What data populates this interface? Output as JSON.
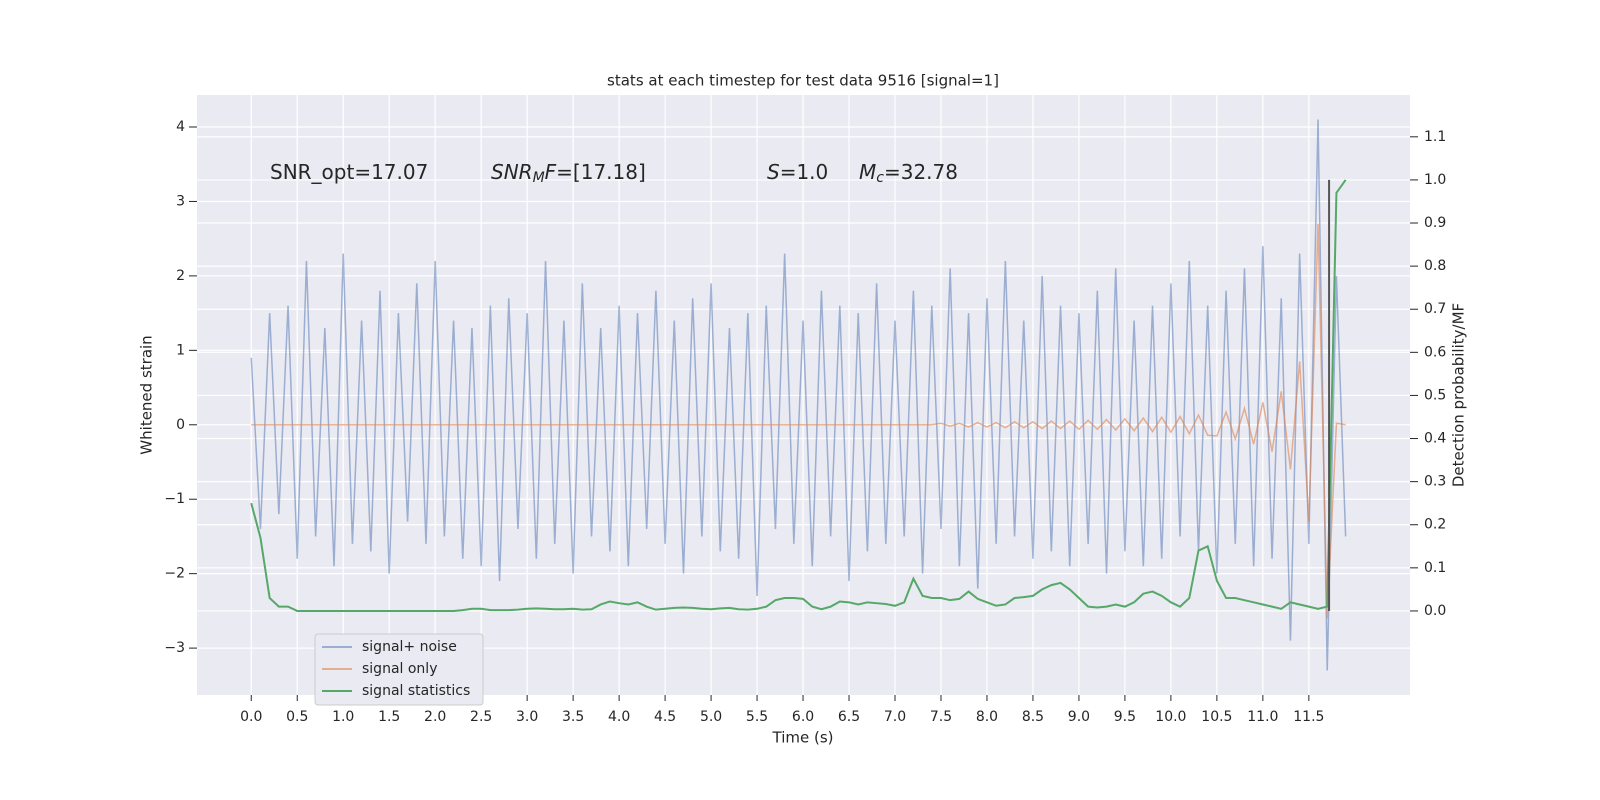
{
  "chart_data": {
    "type": "line",
    "title": "stats at each timestep for test data 9516 [signal=1]",
    "xlabel": "Time (s)",
    "ylabel": "Whitened strain",
    "y2label": "Detection probability/MF",
    "annotations": [
      [
        {
          "text": "SNR_opt=17.07"
        }
      ],
      [
        {
          "text": "SNR",
          "style": "italic"
        },
        {
          "text": "M",
          "style": "sub"
        },
        {
          "text": "F",
          "style": "italic"
        },
        {
          "text": "=[17.18]"
        }
      ],
      [
        {
          "text": "S",
          "style": "italic"
        },
        {
          "text": "=1.0"
        }
      ],
      [
        {
          "text": "M",
          "style": "italic"
        },
        {
          "text": "c",
          "style": "sub"
        },
        {
          "text": "=32.78"
        }
      ]
    ],
    "xlim": [
      -0.59,
      12.6
    ],
    "ylim": [
      -3.63,
      4.43
    ],
    "y2lim": [
      -0.195,
      1.197
    ],
    "xticks": [
      {
        "value": 0,
        "label": "0.0"
      },
      0.5,
      {
        "value": 1,
        "label": "1.0"
      },
      1.5,
      {
        "value": 2,
        "label": "2.0"
      },
      2.5,
      {
        "value": 3,
        "label": "3.0"
      },
      3.5,
      {
        "value": 4,
        "label": "4.0"
      },
      4.5,
      {
        "value": 5,
        "label": "5.0"
      },
      5.5,
      {
        "value": 6,
        "label": "6.0"
      },
      6.5,
      {
        "value": 7,
        "label": "7.0"
      },
      7.5,
      {
        "value": 8,
        "label": "8.0"
      },
      8.5,
      {
        "value": 9,
        "label": "9.0"
      },
      9.5,
      {
        "value": 10,
        "label": "10.0"
      },
      10.5,
      {
        "value": 11,
        "label": "11.0"
      },
      11.5
    ],
    "yticks": [
      {
        "value": -3,
        "label": "−3"
      },
      {
        "value": -2,
        "label": "−2"
      },
      {
        "value": -1,
        "label": "−1"
      },
      0,
      1,
      2,
      3,
      4
    ],
    "y2ticks": [
      {
        "value": 0,
        "label": "0.0"
      },
      0.1,
      0.2,
      0.3,
      0.4,
      0.5,
      0.6,
      0.7,
      0.8,
      0.9,
      {
        "value": 1,
        "label": "1.0"
      },
      1.1
    ],
    "grid": true,
    "x": [
      0.0,
      0.1,
      0.2,
      0.3,
      0.4,
      0.5,
      0.6,
      0.7,
      0.8,
      0.9,
      1.0,
      1.1,
      1.2,
      1.3,
      1.4,
      1.5,
      1.6,
      1.7,
      1.8,
      1.9,
      2.0,
      2.1,
      2.2,
      2.3,
      2.4,
      2.5,
      2.6,
      2.7,
      2.8,
      2.9,
      3.0,
      3.1,
      3.2,
      3.3,
      3.4,
      3.5,
      3.6,
      3.7,
      3.8,
      3.9,
      4.0,
      4.1,
      4.2,
      4.3,
      4.4,
      4.5,
      4.6,
      4.7,
      4.8,
      4.9,
      5.0,
      5.1,
      5.2,
      5.3,
      5.4,
      5.5,
      5.6,
      5.7,
      5.8,
      5.9,
      6.0,
      6.1,
      6.2,
      6.3,
      6.4,
      6.5,
      6.6,
      6.7,
      6.8,
      6.9,
      7.0,
      7.1,
      7.2,
      7.3,
      7.4,
      7.5,
      7.6,
      7.7,
      7.8,
      7.9,
      8.0,
      8.1,
      8.2,
      8.3,
      8.4,
      8.5,
      8.6,
      8.7,
      8.8,
      8.9,
      9.0,
      9.1,
      9.2,
      9.3,
      9.4,
      9.5,
      9.6,
      9.7,
      9.8,
      9.9,
      10.0,
      10.1,
      10.2,
      10.3,
      10.4,
      10.5,
      10.6,
      10.7,
      10.8,
      10.9,
      11.0,
      11.1,
      11.2,
      11.3,
      11.4,
      11.5,
      11.6,
      11.7,
      11.8,
      11.9
    ],
    "series": [
      {
        "name": "signal+ noise",
        "color": "#4c72b0",
        "opacity": 0.5,
        "values": [
          0.9,
          -1.4,
          1.5,
          -1.2,
          1.6,
          -1.8,
          2.2,
          -1.5,
          1.3,
          -1.9,
          2.3,
          -1.6,
          1.4,
          -1.7,
          1.8,
          -2.0,
          1.5,
          -1.3,
          1.9,
          -1.6,
          2.2,
          -1.5,
          1.4,
          -1.8,
          1.3,
          -1.9,
          1.6,
          -2.1,
          1.7,
          -1.4,
          1.5,
          -1.8,
          2.2,
          -1.6,
          1.4,
          -2.0,
          1.9,
          -1.5,
          1.3,
          -1.7,
          1.6,
          -1.9,
          1.5,
          -1.4,
          1.8,
          -1.6,
          1.4,
          -2.0,
          1.7,
          -1.5,
          1.9,
          -1.7,
          1.3,
          -1.8,
          1.5,
          -2.3,
          1.6,
          -1.4,
          2.3,
          -1.6,
          1.4,
          -1.9,
          1.8,
          -1.5,
          1.6,
          -2.1,
          1.5,
          -1.7,
          1.9,
          -1.6,
          1.4,
          -1.5,
          1.8,
          -2.0,
          1.6,
          -1.4,
          2.1,
          -1.9,
          1.5,
          -2.2,
          1.7,
          -1.6,
          2.2,
          -1.5,
          1.4,
          -1.8,
          2.0,
          -1.7,
          1.6,
          -1.9,
          1.5,
          -1.6,
          1.8,
          -2.0,
          2.1,
          -1.7,
          1.4,
          -1.9,
          1.6,
          -1.8,
          1.9,
          -1.5,
          2.2,
          -1.7,
          1.6,
          -2.0,
          1.8,
          -1.6,
          2.1,
          -1.9,
          2.4,
          -1.8,
          1.7,
          -2.9,
          2.3,
          -1.6,
          4.1,
          -3.3,
          2.0,
          -1.5
        ]
      },
      {
        "name": "signal only",
        "color": "#dd8452",
        "opacity": 0.6,
        "values": [
          0,
          0,
          0,
          0,
          0,
          0,
          0,
          0,
          0,
          0,
          0,
          0,
          0,
          0,
          0,
          0,
          0,
          0,
          0,
          0,
          0,
          0,
          0,
          0,
          0,
          0,
          0,
          0,
          0,
          0,
          0,
          0,
          0,
          0,
          0,
          0,
          0,
          0,
          0,
          0,
          0,
          0,
          0,
          0,
          0,
          0,
          0,
          0,
          0,
          0,
          0,
          0,
          0,
          0,
          0,
          0,
          0,
          0,
          0,
          0,
          0,
          0,
          0,
          0,
          0,
          0,
          0,
          0,
          0,
          0,
          0,
          0,
          0,
          0,
          0,
          0.02,
          -0.02,
          0.02,
          -0.03,
          0.03,
          -0.03,
          0.03,
          -0.04,
          0.04,
          -0.04,
          0.04,
          -0.05,
          0.05,
          -0.05,
          0.05,
          -0.06,
          0.06,
          -0.06,
          0.07,
          -0.07,
          0.08,
          -0.08,
          0.09,
          -0.09,
          0.1,
          -0.1,
          0.11,
          -0.12,
          0.13,
          -0.14,
          -0.15,
          0.17,
          -0.19,
          0.22,
          -0.26,
          0.3,
          -0.36,
          0.45,
          -0.6,
          0.85,
          -1.3,
          2.7,
          -2.6,
          0.02,
          0.0
        ]
      },
      {
        "name": "signal statistics",
        "color": "#55a868",
        "opacity": 1,
        "axis": "y2",
        "values": [
          0.25,
          0.17,
          0.03,
          0.01,
          0.01,
          0.0,
          0.0,
          0.0,
          0.0,
          0.0,
          0.0,
          0.0,
          0.0,
          0.0,
          0.0,
          0.0,
          0.0,
          0.0,
          0.0,
          0.0,
          0.0,
          0.0,
          0.0,
          0.002,
          0.005,
          0.005,
          0.002,
          0.002,
          0.002,
          0.003,
          0.005,
          0.006,
          0.005,
          0.004,
          0.004,
          0.005,
          0.003,
          0.004,
          0.015,
          0.022,
          0.018,
          0.015,
          0.02,
          0.01,
          0.003,
          0.005,
          0.007,
          0.008,
          0.007,
          0.005,
          0.004,
          0.006,
          0.007,
          0.004,
          0.003,
          0.005,
          0.01,
          0.025,
          0.03,
          0.03,
          0.028,
          0.01,
          0.004,
          0.01,
          0.022,
          0.02,
          0.015,
          0.02,
          0.018,
          0.016,
          0.012,
          0.02,
          0.075,
          0.035,
          0.03,
          0.03,
          0.025,
          0.028,
          0.045,
          0.028,
          0.02,
          0.012,
          0.015,
          0.03,
          0.032,
          0.035,
          0.05,
          0.06,
          0.065,
          0.05,
          0.03,
          0.01,
          0.008,
          0.01,
          0.015,
          0.01,
          0.02,
          0.04,
          0.045,
          0.035,
          0.02,
          0.01,
          0.03,
          0.14,
          0.15,
          0.07,
          0.03,
          0.03,
          0.025,
          0.02,
          0.015,
          0.01,
          0.005,
          0.02,
          0.015,
          0.01,
          0.005,
          0.01,
          0.97,
          1.0
        ]
      }
    ],
    "vline": {
      "x": 11.72,
      "y2": [
        0,
        1
      ],
      "color": "#555555"
    }
  }
}
